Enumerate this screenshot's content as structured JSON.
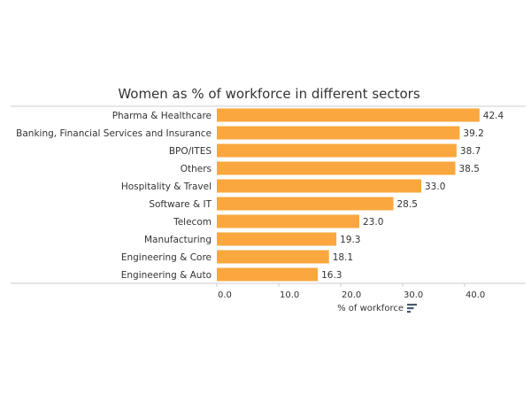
{
  "chart_data": {
    "type": "bar",
    "orientation": "horizontal",
    "title": "Women as % of workforce in different sectors",
    "xlabel": "% of workforce",
    "ylabel": "",
    "xlim": [
      0,
      45
    ],
    "ticks": [
      0.0,
      10.0,
      20.0,
      30.0,
      40.0
    ],
    "tick_labels": [
      "0.0",
      "10.0",
      "20.0",
      "30.0",
      "40.0"
    ],
    "categories": [
      "Pharma & Healthcare",
      "Banking, Financial Services and Insurance",
      "BPO/ITES",
      "Others",
      "Hospitality & Travel",
      "Software & IT",
      "Telecom",
      "Manufacturing",
      "Engineering & Core",
      "Engineering & Auto"
    ],
    "values": [
      42.4,
      39.2,
      38.7,
      38.5,
      33.0,
      28.5,
      23.0,
      19.3,
      18.1,
      16.3
    ],
    "value_labels": [
      "42.4",
      "39.2",
      "38.7",
      "38.5",
      "33.0",
      "28.5",
      "23.0",
      "19.3",
      "18.1",
      "16.3"
    ],
    "grid": false,
    "sort_icon": "sort-descending-icon",
    "colors": {
      "bar": "#F9A73E",
      "text": "#333333",
      "axis": "#cccccc",
      "icon": "#4a5a6e"
    }
  }
}
